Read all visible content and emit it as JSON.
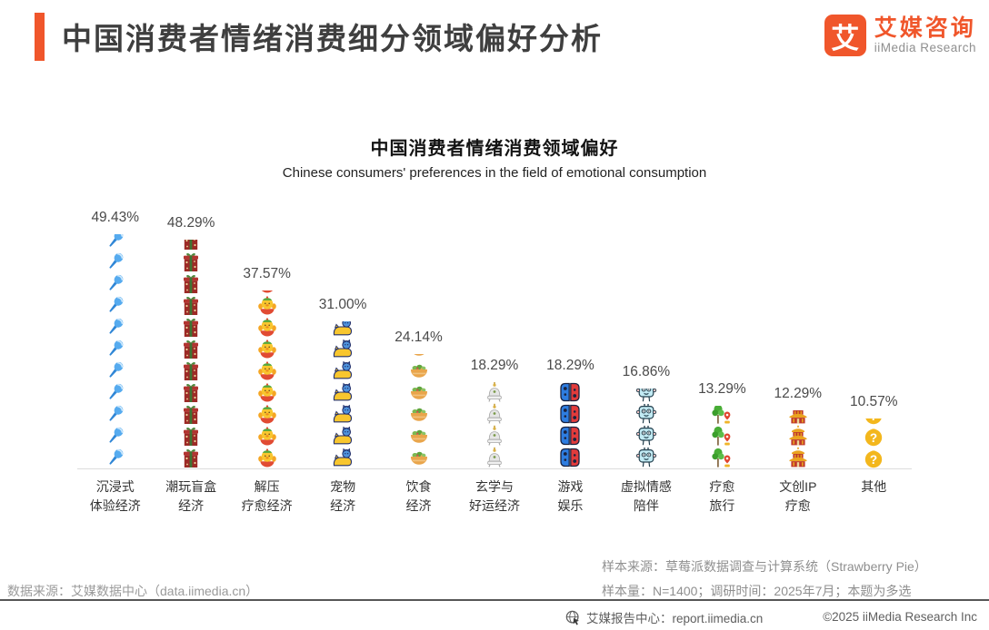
{
  "page": {
    "header": {
      "title": "中国消费者情绪消费细分领域偏好分析",
      "logo": {
        "mark": "艾",
        "brand_cn": "艾媒咨询",
        "brand_en": "iiMedia Research"
      }
    },
    "footnotes": {
      "sample_source": "样本来源：草莓派数据调查与计算系统（Strawberry Pie）",
      "sample_info": "样本量：N=1400；调研时间：2025年7月；本题为多选",
      "data_source": "数据来源：艾媒数据中心（data.iimedia.cn）"
    },
    "footer": {
      "report_center": "艾媒报告中心：report.iimedia.cn",
      "copyright": "©2025 iiMedia Research Inc"
    },
    "colors": {
      "accent_orange": "#F0562B",
      "title_text": "#3F3F3F",
      "axis_line": "#DCDCDC",
      "footnote_gray": "#8F8F8F",
      "divider_gray": "#565656"
    }
  },
  "chart_data": {
    "type": "bar",
    "style": "pictograph-stacked-emoji-icons",
    "title": "中国消费者情绪消费领域偏好",
    "subtitle": "Chinese consumers' preferences in the field of emotional consumption",
    "unit": "%",
    "ylim": [
      0,
      50
    ],
    "grid": false,
    "legend": false,
    "value_label_position": "above-bar",
    "categories": [
      "沉浸式体验经济",
      "潮玩盲盒经济",
      "解压疗愈经济",
      "宠物经济",
      "饮食经济",
      "玄学与好运经济",
      "游戏娱乐",
      "虚拟情感陪伴",
      "疗愈旅行",
      "文创IP疗愈",
      "其他"
    ],
    "values": [
      49.43,
      48.29,
      37.57,
      31.0,
      24.14,
      18.29,
      18.29,
      16.86,
      13.29,
      12.29,
      10.57
    ],
    "bars": [
      {
        "category_lines": [
          "沉浸式",
          "体验经济"
        ],
        "value": 49.43,
        "display": "49.43%",
        "icon": "microphone-icon"
      },
      {
        "category_lines": [
          "潮玩盲盒",
          "经济"
        ],
        "value": 48.29,
        "display": "48.29%",
        "icon": "giftbox-icon"
      },
      {
        "category_lines": [
          "解压",
          "疗愈经济"
        ],
        "value": 37.57,
        "display": "37.57%",
        "icon": "duck-toy-icon"
      },
      {
        "category_lines": [
          "宠物",
          "经济"
        ],
        "value": 31.0,
        "display": "31.00%",
        "icon": "pet-cat-icon"
      },
      {
        "category_lines": [
          "饮食",
          "经济"
        ],
        "value": 24.14,
        "display": "24.14%",
        "icon": "salad-bowl-icon"
      },
      {
        "category_lines": [
          "玄学与",
          "好运经济"
        ],
        "value": 18.29,
        "display": "18.29%",
        "icon": "bell-censer-icon"
      },
      {
        "category_lines": [
          "游戏",
          "娱乐"
        ],
        "value": 18.29,
        "display": "18.29%",
        "icon": "game-controller-icon"
      },
      {
        "category_lines": [
          "虚拟情感",
          "陪伴"
        ],
        "value": 16.86,
        "display": "16.86%",
        "icon": "robot-icon"
      },
      {
        "category_lines": [
          "疗愈",
          "旅行"
        ],
        "value": 13.29,
        "display": "13.29%",
        "icon": "travel-tree-icon"
      },
      {
        "category_lines": [
          "文创IP",
          "疗愈"
        ],
        "value": 12.29,
        "display": "12.29%",
        "icon": "temple-icon"
      },
      {
        "category_lines": [
          "其他"
        ],
        "value": 10.57,
        "display": "10.57%",
        "icon": "question-coin-icon"
      }
    ]
  }
}
